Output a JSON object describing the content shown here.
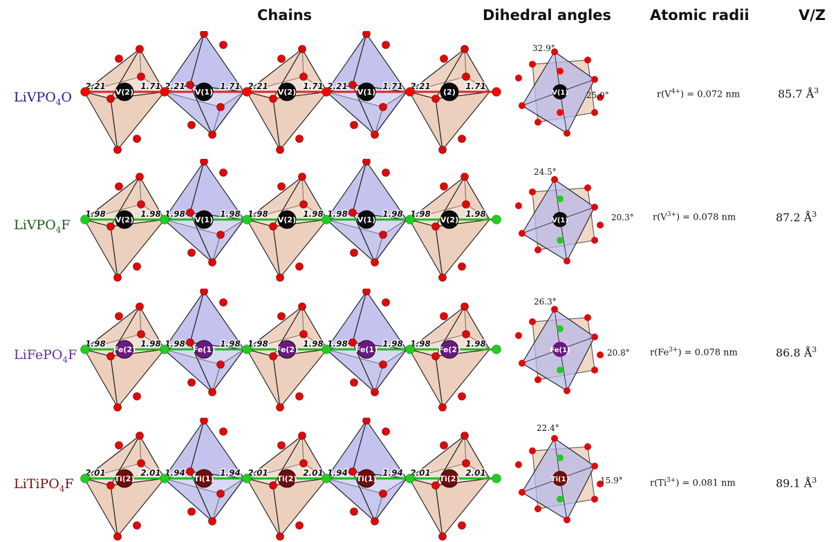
{
  "headers": {
    "chains": "Chains",
    "dihedral": "Dihedral angles",
    "radii": "Atomic radii",
    "vz": "V/Z"
  },
  "rows": [
    {
      "name": "LiVPO",
      "name_sub": "4",
      "name_suffix": "O",
      "name_color": "#1f1f8f",
      "bridge_color": "#ff0000",
      "bridge_bond_color": "#d42a2a",
      "atom_color": "#0a0a0a",
      "labels": [
        "V(2)",
        "V(1)",
        "V(2)",
        "V(1)",
        "(2)"
      ],
      "bonds": [
        [
          "2.21",
          "1.71"
        ],
        [
          "2.21",
          "1.71"
        ],
        [
          "2.21",
          "1.71"
        ],
        [
          "2.21",
          "1.71"
        ],
        [
          "2.21",
          "1.71"
        ]
      ],
      "dihedral_center": "V(1)",
      "angle_top": "32.9°",
      "angle_side": "25.0°",
      "radius_pre": "r(V",
      "radius_sup": "4+",
      "radius_post": ") = 0.072 nm",
      "vz_value": "85.7 Å",
      "vz_sup": "3"
    },
    {
      "name": "LiVPO",
      "name_sub": "4",
      "name_suffix": "F",
      "name_color": "#1d5a1d",
      "bridge_color": "#22cc22",
      "bridge_bond_color": "#1fb51f",
      "atom_color": "#0a0a0a",
      "labels": [
        "V(2)",
        "V(1)",
        "V(2)",
        "V(1)",
        "V(2)"
      ],
      "bonds": [
        [
          "1.98",
          "1.98"
        ],
        [
          "1.98",
          "1.98"
        ],
        [
          "1.98",
          "1.98"
        ],
        [
          "1.98",
          "1.98"
        ],
        [
          "1.98",
          "1.98"
        ]
      ],
      "dihedral_center": "V(1)",
      "angle_top": "24.5°",
      "angle_side": "20.3°",
      "radius_pre": "r(V",
      "radius_sup": "3+",
      "radius_post": ") = 0.078 nm",
      "vz_value": "87.2 Å",
      "vz_sup": "3"
    },
    {
      "name": "LiFePO",
      "name_sub": "4",
      "name_suffix": "F",
      "name_color": "#6b2e8f",
      "bridge_color": "#22cc22",
      "bridge_bond_color": "#1fb51f",
      "atom_color": "#6a1a7e",
      "labels": [
        "Fe(2)",
        "Fe(1)",
        "Fe(2)",
        "Fe(1)",
        "Fe(2)"
      ],
      "bonds": [
        [
          "1.98",
          "1.98"
        ],
        [
          "1.98",
          "1.98"
        ],
        [
          "1.98",
          "1.98"
        ],
        [
          "1.98",
          "1.98"
        ],
        [
          "1.98",
          "1.98"
        ]
      ],
      "dihedral_center": "Fe(1)",
      "angle_top": "26.3°",
      "angle_side": "20.8°",
      "radius_pre": "r(Fe",
      "radius_sup": "3+",
      "radius_post": ") = 0.078 nm",
      "vz_value": "86.8 Å",
      "vz_sup": "3"
    },
    {
      "name": "LiTiPO",
      "name_sub": "4",
      "name_suffix": "F",
      "name_color": "#7a1010",
      "bridge_color": "#22cc22",
      "bridge_bond_color": "#1fb51f",
      "atom_color": "#6e0d0d",
      "labels": [
        "Ti(2)",
        "Ti(1)",
        "Ti(2)",
        "Ti(1)",
        "Ti(2)"
      ],
      "bonds": [
        [
          "2.01",
          "2.01"
        ],
        [
          "1.94",
          "1.94"
        ],
        [
          "2.01",
          "2.01"
        ],
        [
          "1.94",
          "1.94"
        ],
        [
          "2.01",
          "2.01"
        ]
      ],
      "dihedral_center": "Ti(1)",
      "angle_top": "22.4°",
      "angle_side": "15.9°",
      "radius_pre": "r(Ti",
      "radius_sup": "3+",
      "radius_post": ") = 0.081 nm",
      "vz_value": "89.1 Å",
      "vz_sup": "3"
    }
  ]
}
